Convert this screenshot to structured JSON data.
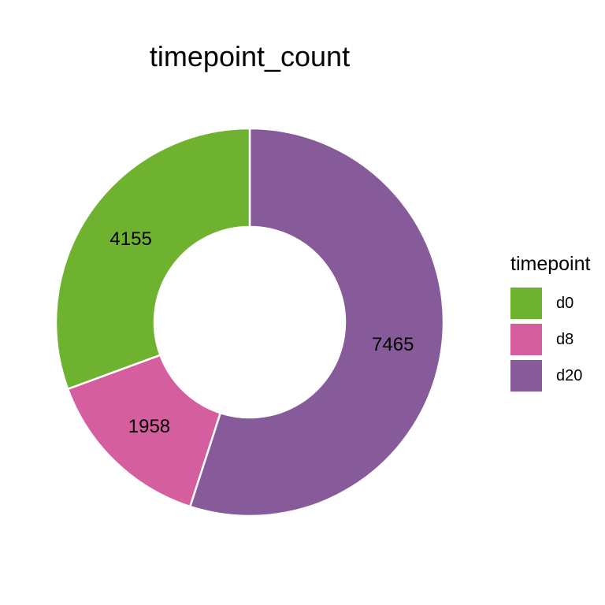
{
  "chart_data": {
    "type": "pie",
    "variant": "donut",
    "title": "timepoint_count",
    "legend_title": "timepoint",
    "legend_position": "right",
    "slices": [
      {
        "label": "d0",
        "value": 4155,
        "color": "#6EB22F"
      },
      {
        "label": "d8",
        "value": 1958,
        "color": "#D55E9E"
      },
      {
        "label": "d20",
        "value": 7465,
        "color": "#875A9A"
      }
    ],
    "slice_order": [
      "d20",
      "d8",
      "d0"
    ],
    "background": "#ffffff",
    "slice_border": "#ffffff"
  }
}
